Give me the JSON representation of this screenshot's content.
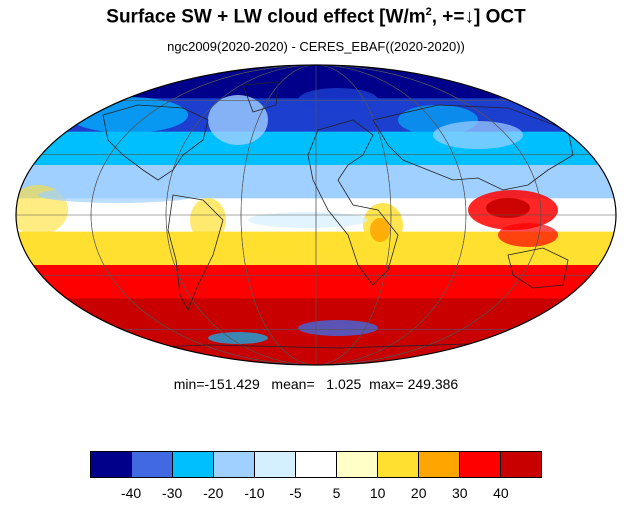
{
  "title": {
    "main": "Surface SW + LW cloud effect [W/m",
    "sup": "2",
    "after": ", +=↓]  OCT"
  },
  "subtitle": "ngc2009(2020-2020) - CERES_EBAF((2020-2020))",
  "stats": {
    "text": "min=-151.429   mean=   1.025  max= 249.386",
    "min": -151.429,
    "mean": 1.025,
    "max": 249.386
  },
  "colorbar": {
    "colors": [
      "#00008b",
      "#4169e1",
      "#00bfff",
      "#a0d0ff",
      "#d4f0ff",
      "#ffffff",
      "#ffffc8",
      "#ffe030",
      "#ffa500",
      "#ff0000",
      "#c80000"
    ],
    "labels": [
      "-40",
      "-30",
      "-20",
      "-10",
      "-5",
      "5",
      "10",
      "20",
      "30",
      "40"
    ]
  },
  "map": {
    "projection": "mollweide",
    "gridlines": true,
    "coastlines": true,
    "field_bands": [
      {
        "color": "#00008b"
      },
      {
        "color": "#1c3fd0"
      },
      {
        "color": "#00bfff"
      },
      {
        "color": "#a0d0ff"
      },
      {
        "color": "#ffffff"
      },
      {
        "color": "#ffe030"
      },
      {
        "color": "#ff0000"
      },
      {
        "color": "#c80000"
      },
      {
        "color": "#c80000"
      }
    ]
  }
}
